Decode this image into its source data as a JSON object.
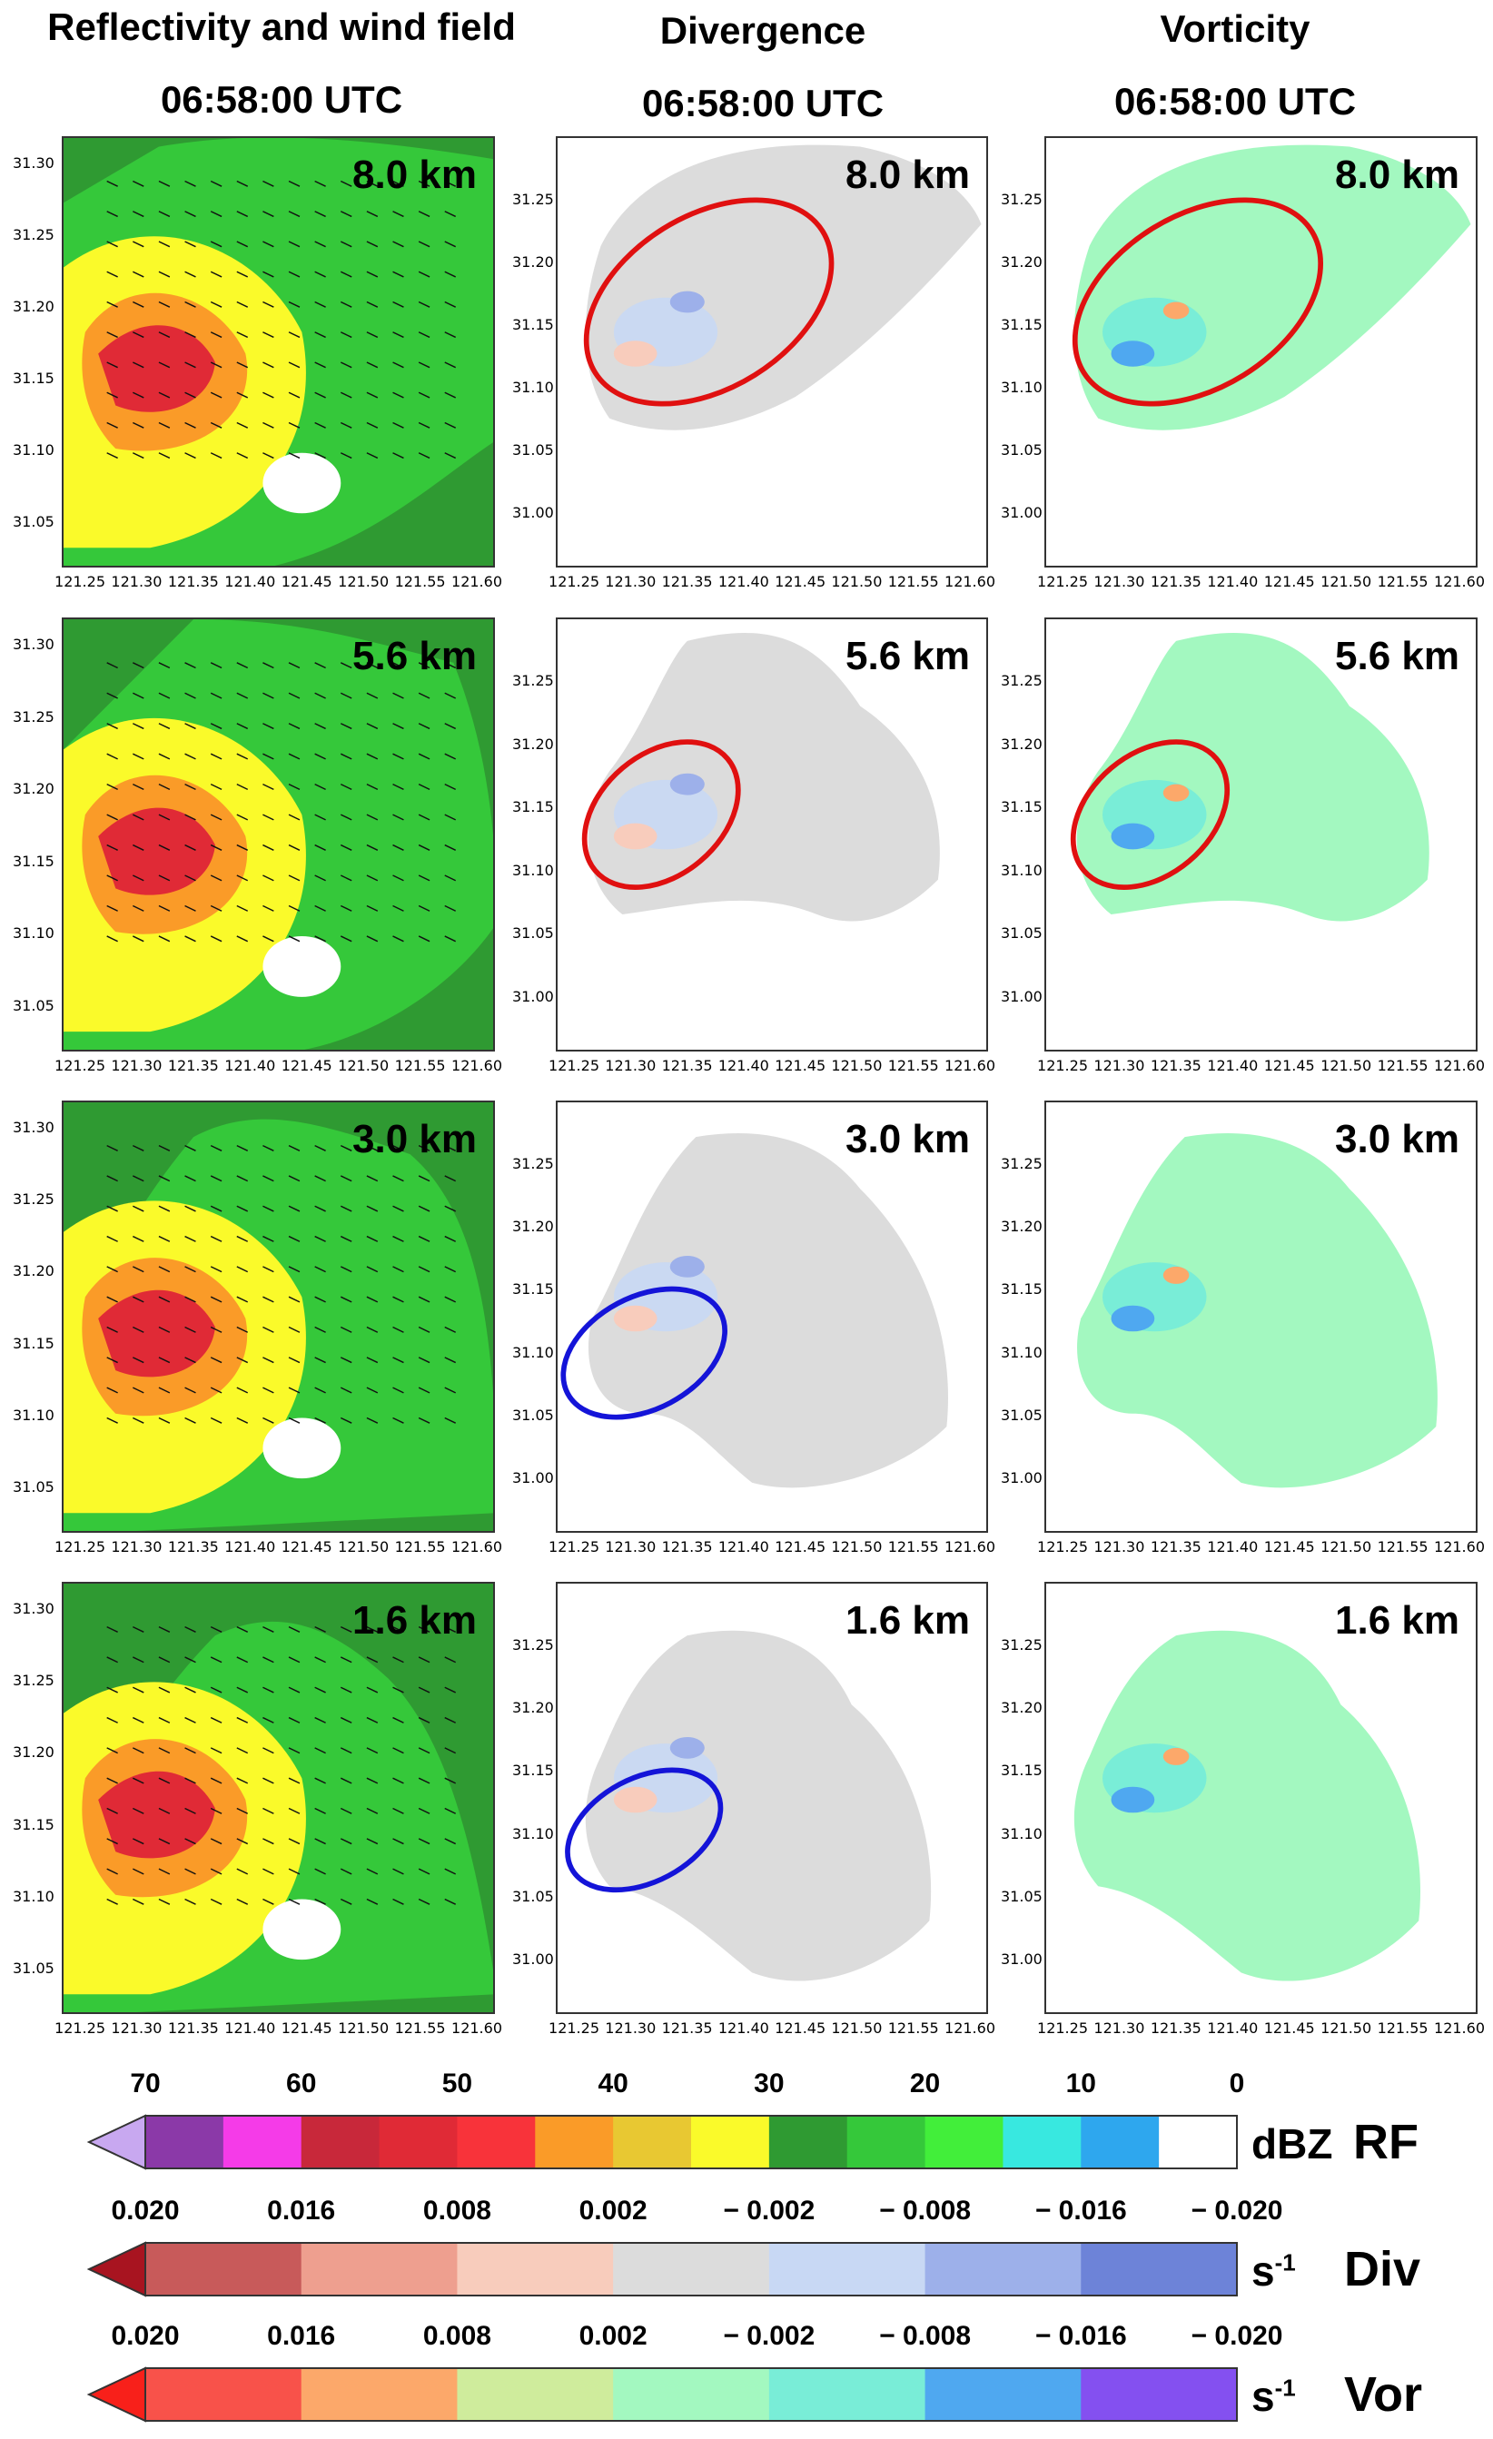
{
  "columns": [
    {
      "title": "Reflectivity and wind field",
      "time": "06:58:00 UTC"
    },
    {
      "title": "Divergence",
      "time": "06:58:00 UTC"
    },
    {
      "title": "Vorticity",
      "time": "06:58:00 UTC"
    }
  ],
  "rows": [
    {
      "altitude": "8.0 km",
      "div_ellipse_color": "#e01010",
      "vor_ellipse_color": "#e01010"
    },
    {
      "altitude": "5.6 km",
      "div_ellipse_color": "#e01010",
      "vor_ellipse_color": "#e01010"
    },
    {
      "altitude": "3.0 km",
      "div_ellipse_color": "#1414d8",
      "vor_ellipse_color": null
    },
    {
      "altitude": "1.6 km",
      "div_ellipse_color": "#1414d8",
      "vor_ellipse_color": null
    }
  ],
  "axes": {
    "rf_yticks": [
      "31.30",
      "31.25",
      "31.20",
      "31.15",
      "31.10",
      "31.05"
    ],
    "dv_yticks": [
      "31.25",
      "31.20",
      "31.15",
      "31.10",
      "31.05",
      "31.00"
    ],
    "xticks": [
      "121.25",
      "121.30",
      "121.35",
      "121.40",
      "121.45",
      "121.50",
      "121.55",
      "121.60"
    ]
  },
  "colorbars": [
    {
      "name": "RF",
      "unit_base": "dBZ",
      "unit_sup": "",
      "tick_labels": [
        "70",
        "60",
        "50",
        "40",
        "30",
        "20",
        "10",
        "0"
      ],
      "colors": [
        "#8b39a8",
        "#f53be8",
        "#c8283a",
        "#e02a36",
        "#f8333a",
        "#fa9b28",
        "#e8c832",
        "#fafa2a",
        "#2f9a32",
        "#35c83a",
        "#42ee3a",
        "#38e8e0",
        "#2ea7ee",
        "#ffffff"
      ],
      "extend_color": "#c8a8f0"
    },
    {
      "name": "Div",
      "unit_base": "s",
      "unit_sup": "-1",
      "tick_labels": [
        "0.020",
        "0.016",
        "0.008",
        "0.002",
        "− 0.002",
        "− 0.008",
        "− 0.016",
        "− 0.020"
      ],
      "colors": [
        "#c85a5a",
        "#ee9f8f",
        "#f8ccbc",
        "#dcdcdc",
        "#c8d8f4",
        "#9db0ea",
        "#6d83d8"
      ],
      "extend_color": "#a81420"
    },
    {
      "name": "Vor",
      "unit_base": "s",
      "unit_sup": "-1",
      "tick_labels": [
        "0.020",
        "0.016",
        "0.008",
        "0.002",
        "− 0.002",
        "− 0.008",
        "− 0.016",
        "− 0.020"
      ],
      "colors": [
        "#f8524a",
        "#fca86a",
        "#cfec9c",
        "#a3f8c0",
        "#79edd7",
        "#4fa8f0",
        "#8450f0"
      ],
      "extend_color": "#f8201a"
    }
  ]
}
